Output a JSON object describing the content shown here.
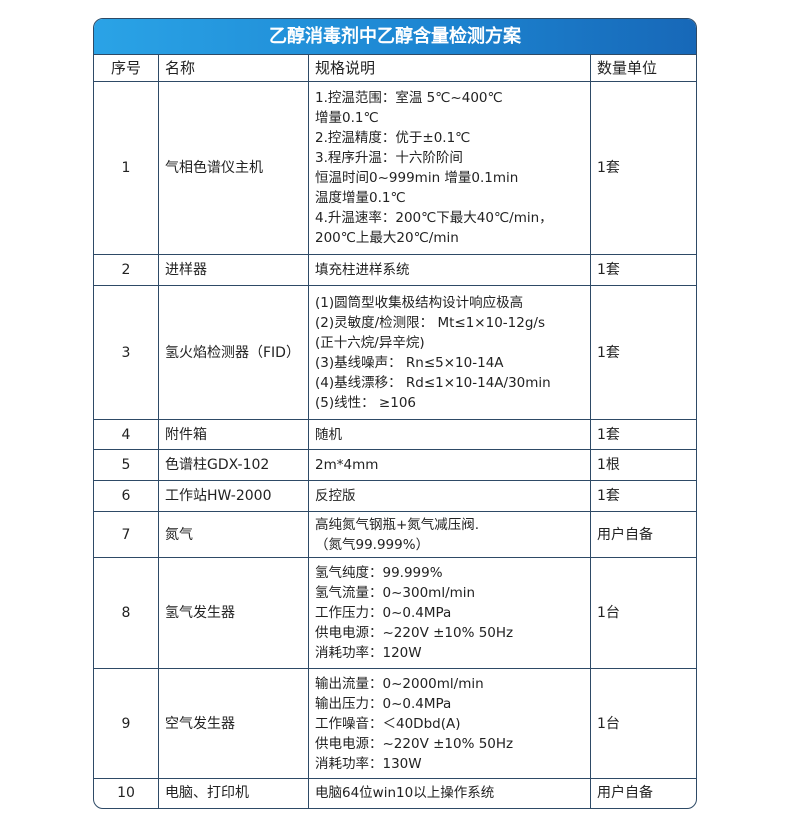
{
  "title": "乙醇消毒剂中乙醇含量检测方案",
  "columns": [
    "序号",
    "名称",
    "规格说明",
    "数量单位"
  ],
  "rows": [
    {
      "no": "1",
      "name": "气相色谱仪主机",
      "spec": [
        "1.控温范围：室温 5℃~400℃",
        "增量0.1℃",
        "2.控温精度：优于±0.1℃",
        "3.程序升温：十六阶阶间",
        "恒温时间0~999min 增量0.1min",
        "温度增量0.1℃",
        "4.升温速率：200℃下最大40℃/min，",
        "200℃上最大20℃/min"
      ],
      "qty": "1套"
    },
    {
      "no": "2",
      "name": "进样器",
      "spec": [
        "填充柱进样系统"
      ],
      "qty": "1套"
    },
    {
      "no": "3",
      "name": "氢火焰检测器（FID）",
      "spec": [
        "(1)圆筒型收集极结构设计响应极高",
        "(2)灵敏度/检测限： Mt≤1×10-12g/s",
        "(正十六烷/异辛烷)",
        "(3)基线噪声： Rn≤5×10-14A",
        "(4)基线漂移： Rd≤1×10-14A/30min",
        "(5)线性： ≥106"
      ],
      "qty": "1套"
    },
    {
      "no": "4",
      "name": "附件箱",
      "spec": [
        "随机"
      ],
      "qty": "1套"
    },
    {
      "no": "5",
      "name": "色谱柱GDX-102",
      "spec": [
        "2m*4mm"
      ],
      "qty": "1根"
    },
    {
      "no": "6",
      "name": "工作站HW-2000",
      "spec": [
        "反控版"
      ],
      "qty": "1套"
    },
    {
      "no": "7",
      "name": "氮气",
      "spec": [
        "高纯氮气钢瓶+氮气减压阀.",
        "（氮气99.999%）"
      ],
      "qty": "用户自备"
    },
    {
      "no": "8",
      "name": "氢气发生器",
      "spec": [
        "氢气纯度：99.999%",
        "氢气流量：0~300ml/min",
        "工作压力：0~0.4MPa",
        "供电电源：~220V ±10% 50Hz",
        "消耗功率：120W"
      ],
      "qty": "1台"
    },
    {
      "no": "9",
      "name": "空气发生器",
      "spec": [
        "输出流量：0~2000ml/min",
        "输出压力：0~0.4MPa",
        "工作噪音：＜40Dbd(A)",
        "供电电源：~220V ±10% 50Hz",
        "消耗功率：130W"
      ],
      "qty": "1台"
    },
    {
      "no": "10",
      "name": "电脑、打印机",
      "spec": [
        "电脑64位win10以上操作系统"
      ],
      "qty": "用户自备"
    }
  ],
  "colors": {
    "header_start": "#2aa3e6",
    "header_end": "#1768b8",
    "border": "#2e4a66"
  }
}
